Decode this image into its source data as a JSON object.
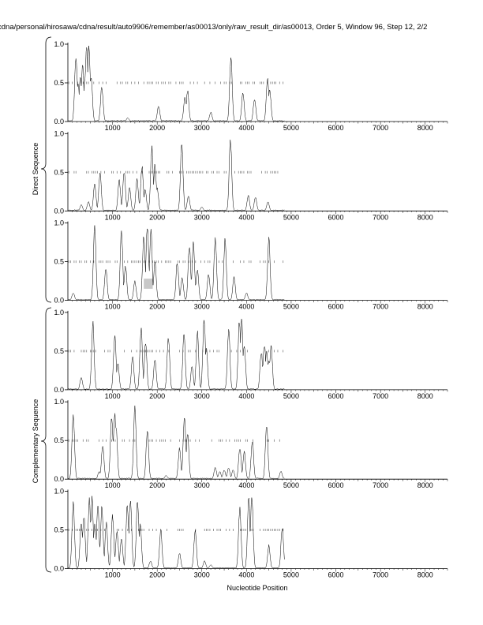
{
  "page_title": "cdna/personal/hirosawa/cdna/result/auto9906/remember/as00013/only/raw_result_dir/as00013, Order 5, Window 96, Step 12, 2/2",
  "xlabel": "Nucleotide Position",
  "group_labels": [
    "Direct Sequence",
    "Complementary Sequence"
  ],
  "colors": {
    "line": "#000000",
    "dots": "#555555",
    "box": "#c8c8c8"
  },
  "chart_data": [
    {
      "type": "line",
      "panel": 1,
      "group": "Direct Sequence",
      "xlim": [
        0,
        8500
      ],
      "ylim": [
        0,
        1
      ],
      "xticks": [
        1000,
        2000,
        3000,
        4000,
        5000,
        6000,
        7000,
        8000
      ],
      "yticks": [
        0.0,
        0.5,
        1.0
      ],
      "threshold": 0.5,
      "sequence_end": 4850,
      "peaks": [
        [
          180,
          0.88
        ],
        [
          230,
          0.5
        ],
        [
          280,
          0.62
        ],
        [
          330,
          0.72
        ],
        [
          380,
          0.55
        ],
        [
          420,
          0.97
        ],
        [
          470,
          0.98
        ],
        [
          520,
          0.6
        ],
        [
          760,
          0.46
        ],
        [
          1340,
          0.05
        ],
        [
          2030,
          0.2
        ],
        [
          2620,
          0.32
        ],
        [
          2680,
          0.4
        ],
        [
          3200,
          0.12
        ],
        [
          3650,
          0.86
        ],
        [
          3920,
          0.38
        ],
        [
          4180,
          0.3
        ],
        [
          4470,
          0.55
        ],
        [
          4520,
          0.42
        ]
      ]
    },
    {
      "type": "line",
      "panel": 2,
      "group": "Direct Sequence",
      "xlim": [
        0,
        8500
      ],
      "ylim": [
        0,
        1
      ],
      "xticks": [
        1000,
        2000,
        3000,
        4000,
        5000,
        6000,
        7000,
        8000
      ],
      "yticks": [
        0.0,
        0.5,
        1.0
      ],
      "threshold": 0.5,
      "sequence_end": 4850,
      "peaks": [
        [
          300,
          0.08
        ],
        [
          460,
          0.12
        ],
        [
          600,
          0.35
        ],
        [
          720,
          0.5
        ],
        [
          1150,
          0.4
        ],
        [
          1260,
          0.52
        ],
        [
          1380,
          0.3
        ],
        [
          1550,
          0.42
        ],
        [
          1660,
          0.58
        ],
        [
          1730,
          0.28
        ],
        [
          1880,
          0.82
        ],
        [
          1950,
          0.62
        ],
        [
          2000,
          0.3
        ],
        [
          2550,
          0.9
        ],
        [
          2700,
          0.2
        ],
        [
          3000,
          0.05
        ],
        [
          3640,
          0.95
        ],
        [
          4040,
          0.2
        ],
        [
          4200,
          0.18
        ],
        [
          4480,
          0.12
        ]
      ]
    },
    {
      "type": "line",
      "panel": 3,
      "group": "Direct Sequence",
      "xlim": [
        0,
        8500
      ],
      "ylim": [
        0,
        1
      ],
      "xticks": [
        1000,
        2000,
        3000,
        4000,
        5000,
        6000,
        7000,
        8000
      ],
      "yticks": [
        0.0,
        0.5,
        1.0
      ],
      "threshold": 0.5,
      "sequence_end": 4850,
      "highlight": {
        "x": [
          1700,
          1900
        ],
        "y": [
          0.15,
          0.28
        ]
      },
      "peaks": [
        [
          120,
          0.1
        ],
        [
          600,
          0.95
        ],
        [
          850,
          0.42
        ],
        [
          1200,
          0.9
        ],
        [
          1290,
          0.45
        ],
        [
          1500,
          0.25
        ],
        [
          1700,
          0.85
        ],
        [
          1780,
          0.98
        ],
        [
          1860,
          0.9
        ],
        [
          1950,
          0.5
        ],
        [
          2450,
          0.5
        ],
        [
          2560,
          0.3
        ],
        [
          2720,
          0.72
        ],
        [
          2810,
          0.75
        ],
        [
          2900,
          0.4
        ],
        [
          3150,
          0.35
        ],
        [
          3300,
          0.82
        ],
        [
          3520,
          0.78
        ],
        [
          3720,
          0.3
        ],
        [
          4000,
          0.1
        ],
        [
          4500,
          0.82
        ]
      ]
    },
    {
      "type": "line",
      "panel": 4,
      "group": "Complementary Sequence",
      "xlim": [
        0,
        8500
      ],
      "ylim": [
        0,
        1
      ],
      "xticks": [
        1000,
        2000,
        3000,
        4000,
        5000,
        6000,
        7000,
        8000
      ],
      "yticks": [
        0.0,
        0.5,
        1.0
      ],
      "threshold": 0.5,
      "sequence_end": 4850,
      "peaks": [
        [
          300,
          0.16
        ],
        [
          560,
          0.88
        ],
        [
          1050,
          0.7
        ],
        [
          1120,
          0.35
        ],
        [
          1450,
          0.45
        ],
        [
          1640,
          0.82
        ],
        [
          1740,
          0.6
        ],
        [
          1950,
          0.4
        ],
        [
          2250,
          0.7
        ],
        [
          2600,
          0.72
        ],
        [
          2780,
          0.3
        ],
        [
          2900,
          0.75
        ],
        [
          3050,
          0.96
        ],
        [
          3100,
          0.55
        ],
        [
          3600,
          0.8
        ],
        [
          3840,
          0.92
        ],
        [
          3890,
          0.92
        ],
        [
          3950,
          0.6
        ],
        [
          4330,
          0.5
        ],
        [
          4400,
          0.6
        ],
        [
          4450,
          0.5
        ],
        [
          4500,
          0.4
        ],
        [
          4550,
          0.6
        ]
      ]
    },
    {
      "type": "line",
      "panel": 5,
      "group": "Complementary Sequence",
      "xlim": [
        0,
        8500
      ],
      "ylim": [
        0,
        1
      ],
      "xticks": [
        1000,
        2000,
        3000,
        4000,
        5000,
        6000,
        7000,
        8000
      ],
      "yticks": [
        0.0,
        0.5,
        1.0
      ],
      "threshold": 0.5,
      "sequence_end": 4850,
      "peaks": [
        [
          120,
          0.88
        ],
        [
          700,
          0.1
        ],
        [
          780,
          0.45
        ],
        [
          980,
          0.82
        ],
        [
          1050,
          0.85
        ],
        [
          1080,
          0.7
        ],
        [
          1500,
          0.92
        ],
        [
          1780,
          0.65
        ],
        [
          2200,
          0.05
        ],
        [
          2500,
          0.4
        ],
        [
          2610,
          0.82
        ],
        [
          2680,
          0.62
        ],
        [
          3300,
          0.15
        ],
        [
          3400,
          0.1
        ],
        [
          3500,
          0.12
        ],
        [
          3600,
          0.15
        ],
        [
          3700,
          0.12
        ],
        [
          3850,
          0.42
        ],
        [
          3950,
          0.35
        ],
        [
          4130,
          0.5
        ],
        [
          4450,
          0.7
        ],
        [
          4770,
          0.1
        ]
      ]
    },
    {
      "type": "line",
      "panel": 6,
      "group": "Complementary Sequence",
      "xlim": [
        0,
        8500
      ],
      "ylim": [
        0,
        1
      ],
      "xticks": [
        1000,
        2000,
        3000,
        4000,
        5000,
        6000,
        7000,
        8000
      ],
      "yticks": [
        0.0,
        0.5,
        1.0
      ],
      "threshold": 0.5,
      "sequence_end": 4850,
      "peaks": [
        [
          120,
          0.85
        ],
        [
          300,
          0.6
        ],
        [
          360,
          0.7
        ],
        [
          480,
          0.9
        ],
        [
          540,
          0.92
        ],
        [
          600,
          0.6
        ],
        [
          670,
          0.85
        ],
        [
          760,
          0.8
        ],
        [
          860,
          0.6
        ],
        [
          1000,
          0.7
        ],
        [
          1100,
          0.5
        ],
        [
          1200,
          0.4
        ],
        [
          1330,
          0.85
        ],
        [
          1400,
          0.92
        ],
        [
          1560,
          0.9
        ],
        [
          1620,
          0.6
        ],
        [
          1850,
          0.1
        ],
        [
          2080,
          0.5
        ],
        [
          2500,
          0.2
        ],
        [
          2850,
          0.5
        ],
        [
          3060,
          0.1
        ],
        [
          3200,
          0.05
        ],
        [
          3850,
          0.8
        ],
        [
          4050,
          0.92
        ],
        [
          4120,
          0.95
        ],
        [
          4500,
          0.3
        ],
        [
          4800,
          0.55
        ]
      ]
    }
  ]
}
